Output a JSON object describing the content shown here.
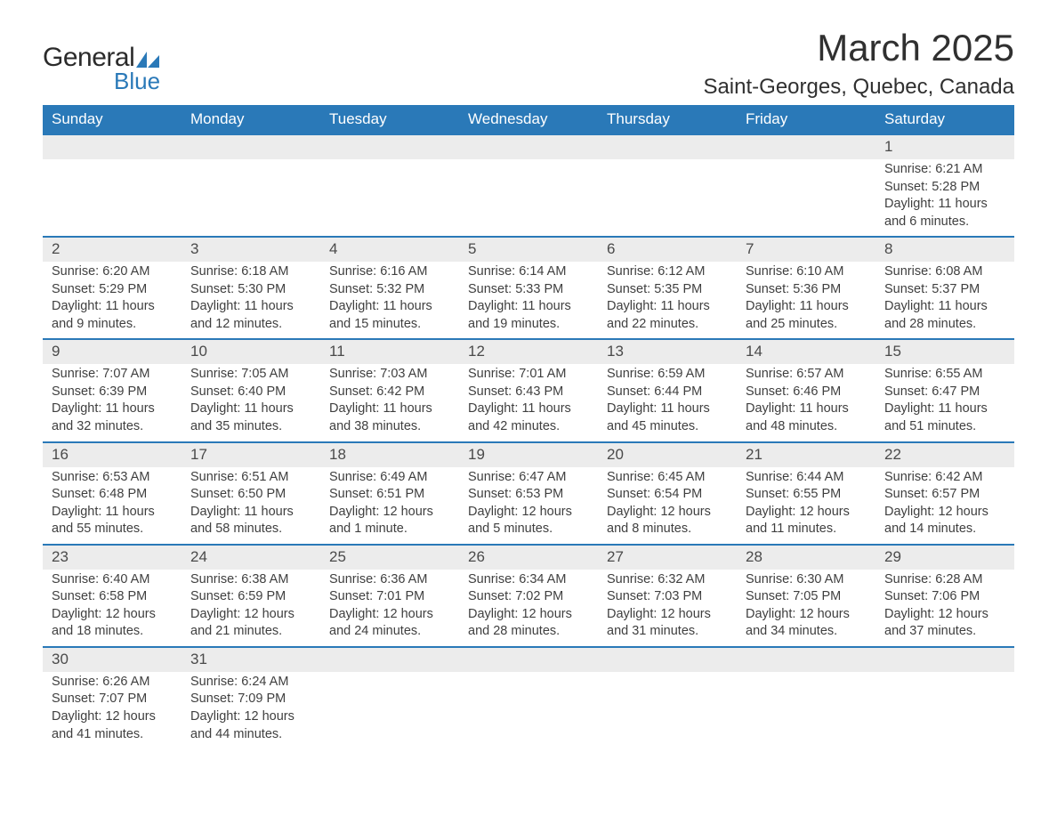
{
  "logo": {
    "word1": "General",
    "word2": "Blue",
    "shape_color": "#2a79b8",
    "text_dark": "#2b2b2b"
  },
  "title": "March 2025",
  "location": "Saint-Georges, Quebec, Canada",
  "colors": {
    "header_bg": "#2a79b8",
    "header_text": "#ffffff",
    "daynum_bg": "#ececec",
    "row_border": "#2a79b8",
    "body_text": "#3f3f3f",
    "page_bg": "#ffffff"
  },
  "fonts": {
    "title_pt": 42,
    "location_pt": 24,
    "header_pt": 17,
    "daynum_pt": 17,
    "body_pt": 14.5
  },
  "weekday_labels": [
    "Sunday",
    "Monday",
    "Tuesday",
    "Wednesday",
    "Thursday",
    "Friday",
    "Saturday"
  ],
  "weeks": [
    [
      null,
      null,
      null,
      null,
      null,
      null,
      {
        "n": "1",
        "sr": "Sunrise: 6:21 AM",
        "ss": "Sunset: 5:28 PM",
        "d1": "Daylight: 11 hours",
        "d2": "and 6 minutes."
      }
    ],
    [
      {
        "n": "2",
        "sr": "Sunrise: 6:20 AM",
        "ss": "Sunset: 5:29 PM",
        "d1": "Daylight: 11 hours",
        "d2": "and 9 minutes."
      },
      {
        "n": "3",
        "sr": "Sunrise: 6:18 AM",
        "ss": "Sunset: 5:30 PM",
        "d1": "Daylight: 11 hours",
        "d2": "and 12 minutes."
      },
      {
        "n": "4",
        "sr": "Sunrise: 6:16 AM",
        "ss": "Sunset: 5:32 PM",
        "d1": "Daylight: 11 hours",
        "d2": "and 15 minutes."
      },
      {
        "n": "5",
        "sr": "Sunrise: 6:14 AM",
        "ss": "Sunset: 5:33 PM",
        "d1": "Daylight: 11 hours",
        "d2": "and 19 minutes."
      },
      {
        "n": "6",
        "sr": "Sunrise: 6:12 AM",
        "ss": "Sunset: 5:35 PM",
        "d1": "Daylight: 11 hours",
        "d2": "and 22 minutes."
      },
      {
        "n": "7",
        "sr": "Sunrise: 6:10 AM",
        "ss": "Sunset: 5:36 PM",
        "d1": "Daylight: 11 hours",
        "d2": "and 25 minutes."
      },
      {
        "n": "8",
        "sr": "Sunrise: 6:08 AM",
        "ss": "Sunset: 5:37 PM",
        "d1": "Daylight: 11 hours",
        "d2": "and 28 minutes."
      }
    ],
    [
      {
        "n": "9",
        "sr": "Sunrise: 7:07 AM",
        "ss": "Sunset: 6:39 PM",
        "d1": "Daylight: 11 hours",
        "d2": "and 32 minutes."
      },
      {
        "n": "10",
        "sr": "Sunrise: 7:05 AM",
        "ss": "Sunset: 6:40 PM",
        "d1": "Daylight: 11 hours",
        "d2": "and 35 minutes."
      },
      {
        "n": "11",
        "sr": "Sunrise: 7:03 AM",
        "ss": "Sunset: 6:42 PM",
        "d1": "Daylight: 11 hours",
        "d2": "and 38 minutes."
      },
      {
        "n": "12",
        "sr": "Sunrise: 7:01 AM",
        "ss": "Sunset: 6:43 PM",
        "d1": "Daylight: 11 hours",
        "d2": "and 42 minutes."
      },
      {
        "n": "13",
        "sr": "Sunrise: 6:59 AM",
        "ss": "Sunset: 6:44 PM",
        "d1": "Daylight: 11 hours",
        "d2": "and 45 minutes."
      },
      {
        "n": "14",
        "sr": "Sunrise: 6:57 AM",
        "ss": "Sunset: 6:46 PM",
        "d1": "Daylight: 11 hours",
        "d2": "and 48 minutes."
      },
      {
        "n": "15",
        "sr": "Sunrise: 6:55 AM",
        "ss": "Sunset: 6:47 PM",
        "d1": "Daylight: 11 hours",
        "d2": "and 51 minutes."
      }
    ],
    [
      {
        "n": "16",
        "sr": "Sunrise: 6:53 AM",
        "ss": "Sunset: 6:48 PM",
        "d1": "Daylight: 11 hours",
        "d2": "and 55 minutes."
      },
      {
        "n": "17",
        "sr": "Sunrise: 6:51 AM",
        "ss": "Sunset: 6:50 PM",
        "d1": "Daylight: 11 hours",
        "d2": "and 58 minutes."
      },
      {
        "n": "18",
        "sr": "Sunrise: 6:49 AM",
        "ss": "Sunset: 6:51 PM",
        "d1": "Daylight: 12 hours",
        "d2": "and 1 minute."
      },
      {
        "n": "19",
        "sr": "Sunrise: 6:47 AM",
        "ss": "Sunset: 6:53 PM",
        "d1": "Daylight: 12 hours",
        "d2": "and 5 minutes."
      },
      {
        "n": "20",
        "sr": "Sunrise: 6:45 AM",
        "ss": "Sunset: 6:54 PM",
        "d1": "Daylight: 12 hours",
        "d2": "and 8 minutes."
      },
      {
        "n": "21",
        "sr": "Sunrise: 6:44 AM",
        "ss": "Sunset: 6:55 PM",
        "d1": "Daylight: 12 hours",
        "d2": "and 11 minutes."
      },
      {
        "n": "22",
        "sr": "Sunrise: 6:42 AM",
        "ss": "Sunset: 6:57 PM",
        "d1": "Daylight: 12 hours",
        "d2": "and 14 minutes."
      }
    ],
    [
      {
        "n": "23",
        "sr": "Sunrise: 6:40 AM",
        "ss": "Sunset: 6:58 PM",
        "d1": "Daylight: 12 hours",
        "d2": "and 18 minutes."
      },
      {
        "n": "24",
        "sr": "Sunrise: 6:38 AM",
        "ss": "Sunset: 6:59 PM",
        "d1": "Daylight: 12 hours",
        "d2": "and 21 minutes."
      },
      {
        "n": "25",
        "sr": "Sunrise: 6:36 AM",
        "ss": "Sunset: 7:01 PM",
        "d1": "Daylight: 12 hours",
        "d2": "and 24 minutes."
      },
      {
        "n": "26",
        "sr": "Sunrise: 6:34 AM",
        "ss": "Sunset: 7:02 PM",
        "d1": "Daylight: 12 hours",
        "d2": "and 28 minutes."
      },
      {
        "n": "27",
        "sr": "Sunrise: 6:32 AM",
        "ss": "Sunset: 7:03 PM",
        "d1": "Daylight: 12 hours",
        "d2": "and 31 minutes."
      },
      {
        "n": "28",
        "sr": "Sunrise: 6:30 AM",
        "ss": "Sunset: 7:05 PM",
        "d1": "Daylight: 12 hours",
        "d2": "and 34 minutes."
      },
      {
        "n": "29",
        "sr": "Sunrise: 6:28 AM",
        "ss": "Sunset: 7:06 PM",
        "d1": "Daylight: 12 hours",
        "d2": "and 37 minutes."
      }
    ],
    [
      {
        "n": "30",
        "sr": "Sunrise: 6:26 AM",
        "ss": "Sunset: 7:07 PM",
        "d1": "Daylight: 12 hours",
        "d2": "and 41 minutes."
      },
      {
        "n": "31",
        "sr": "Sunrise: 6:24 AM",
        "ss": "Sunset: 7:09 PM",
        "d1": "Daylight: 12 hours",
        "d2": "and 44 minutes."
      },
      null,
      null,
      null,
      null,
      null
    ]
  ]
}
